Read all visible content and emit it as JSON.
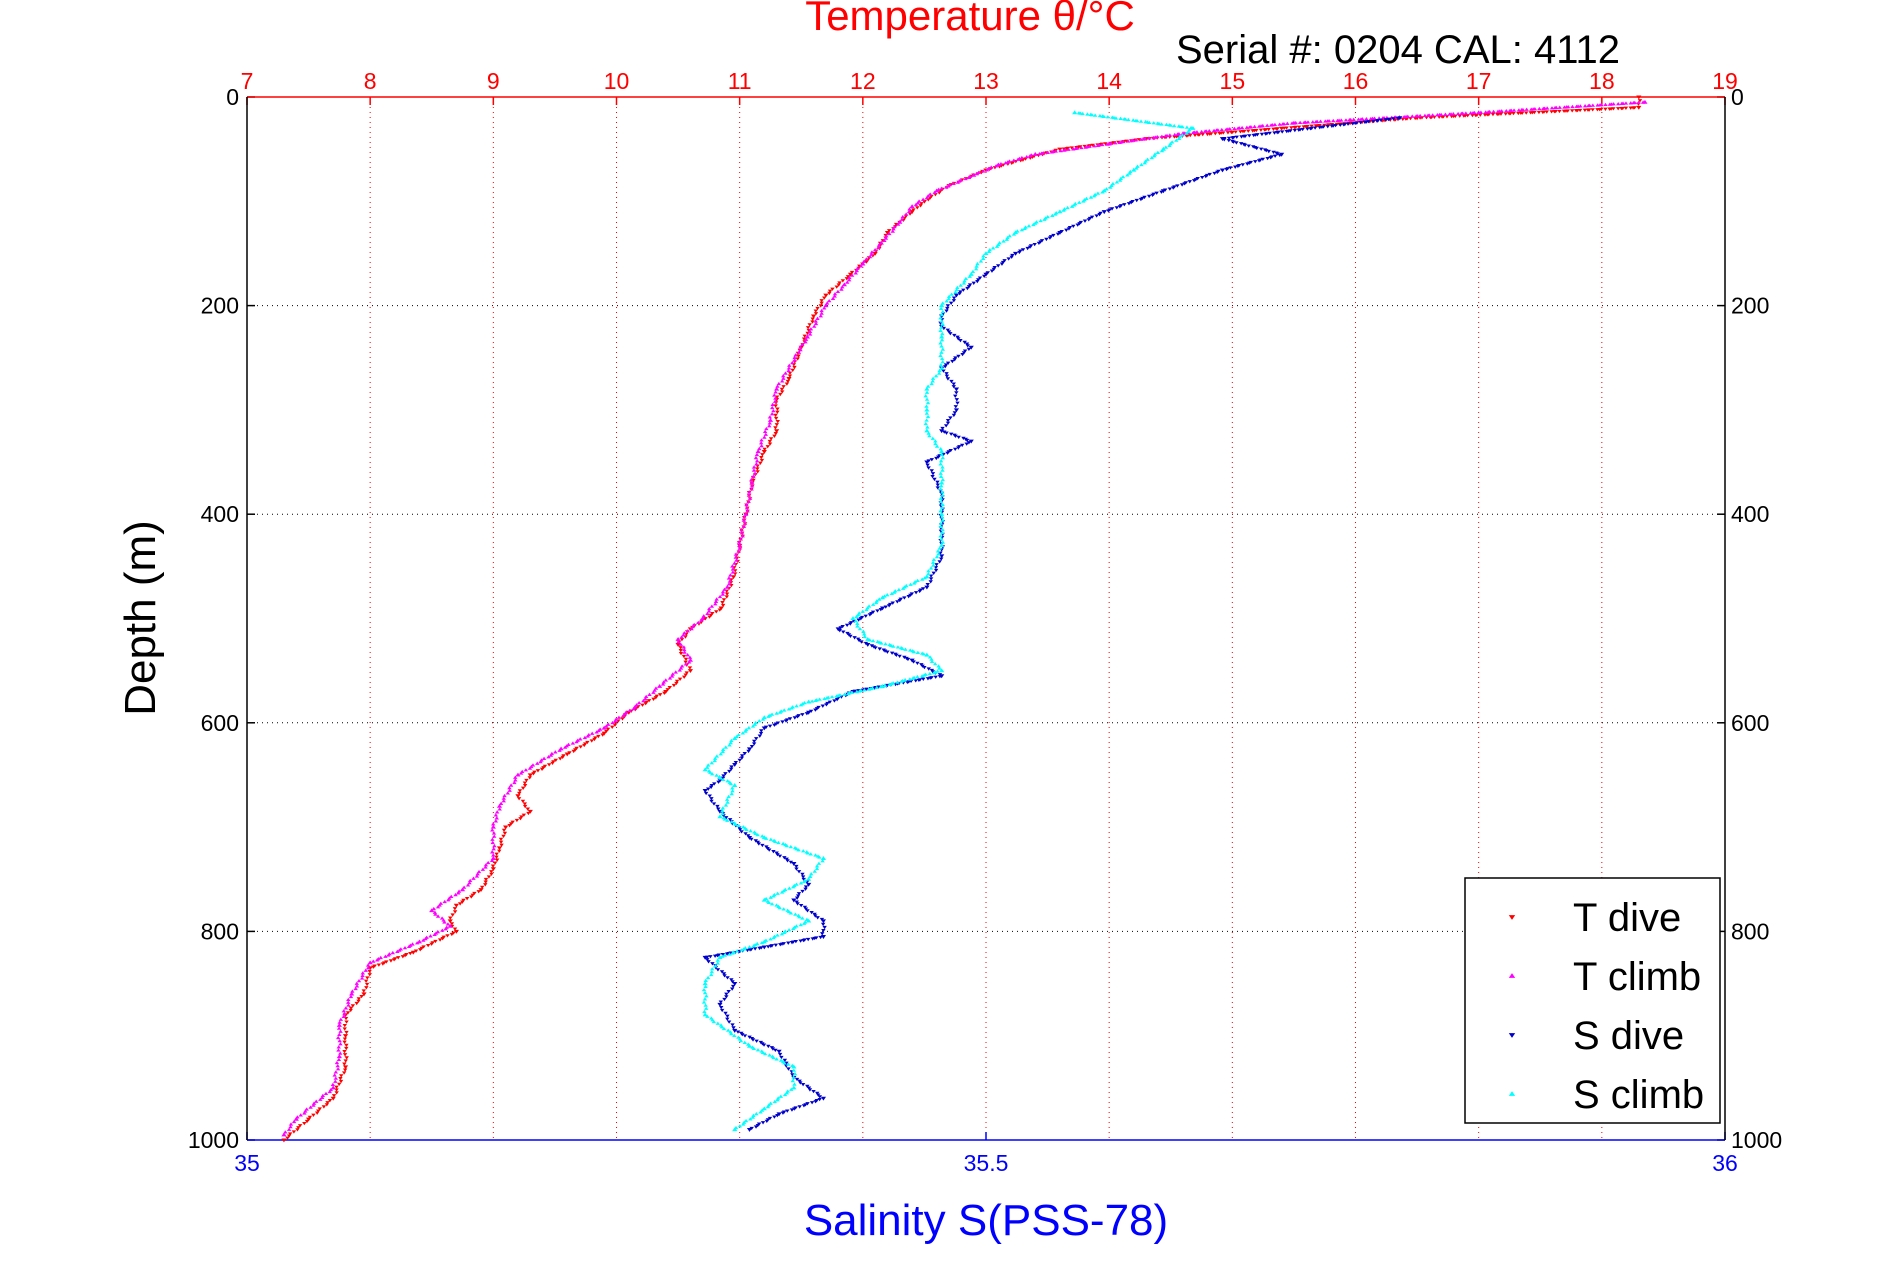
{
  "chart_data": {
    "type": "scatter",
    "title": "Temperature θ/°C",
    "subtitle": "Serial #: 0204  CAL: 4112",
    "xlabel": "Salinity S(PSS-78)",
    "ylabel": "Depth (m)",
    "x_top": {
      "label": "Temperature θ/°C",
      "lim": [
        7,
        19
      ],
      "ticks": [
        "7",
        "8",
        "9",
        "10",
        "11",
        "12",
        "13",
        "14",
        "15",
        "16",
        "17",
        "18",
        "19"
      ]
    },
    "x_bottom": {
      "label": "Salinity S(PSS-78)",
      "lim": [
        35,
        36
      ],
      "ticks": [
        "35",
        "35.5",
        "36"
      ]
    },
    "y": {
      "lim": [
        0,
        1000
      ],
      "reversed": true,
      "ticks": [
        "0",
        "200",
        "400",
        "600",
        "800",
        "1000"
      ]
    },
    "grid": true,
    "legend_position": "bottom-right",
    "colors": {
      "t_dive": "#ff0000",
      "t_climb": "#ff00ff",
      "s_dive": "#0000cc",
      "s_climb": "#00ffff",
      "temp_axis": "#ff0000",
      "sal_axis": "#0000ff"
    },
    "series": [
      {
        "name": "T dive",
        "axis": "temperature",
        "marker": "triangle-down",
        "points": [
          [
            18.3,
            0
          ],
          [
            18.3,
            10
          ],
          [
            16.5,
            20
          ],
          [
            15.4,
            30
          ],
          [
            14.3,
            40
          ],
          [
            13.6,
            50
          ],
          [
            13.3,
            60
          ],
          [
            13.0,
            70
          ],
          [
            12.7,
            85
          ],
          [
            12.5,
            100
          ],
          [
            12.4,
            110
          ],
          [
            12.2,
            130
          ],
          [
            12.1,
            150
          ],
          [
            11.9,
            170
          ],
          [
            11.7,
            190
          ],
          [
            11.6,
            210
          ],
          [
            11.5,
            240
          ],
          [
            11.4,
            270
          ],
          [
            11.3,
            290
          ],
          [
            11.3,
            320
          ],
          [
            11.2,
            340
          ],
          [
            11.1,
            370
          ],
          [
            11.05,
            400
          ],
          [
            11.0,
            430
          ],
          [
            10.95,
            460
          ],
          [
            10.85,
            490
          ],
          [
            10.6,
            510
          ],
          [
            10.5,
            525
          ],
          [
            10.6,
            550
          ],
          [
            10.4,
            570
          ],
          [
            10.1,
            590
          ],
          [
            9.9,
            610
          ],
          [
            9.6,
            630
          ],
          [
            9.3,
            650
          ],
          [
            9.2,
            670
          ],
          [
            9.3,
            685
          ],
          [
            9.1,
            700
          ],
          [
            9.05,
            720
          ],
          [
            9.0,
            740
          ],
          [
            8.9,
            760
          ],
          [
            8.7,
            775
          ],
          [
            8.65,
            790
          ],
          [
            8.7,
            800
          ],
          [
            8.35,
            820
          ],
          [
            8.0,
            835
          ],
          [
            7.95,
            860
          ],
          [
            7.8,
            880
          ],
          [
            7.8,
            900
          ],
          [
            7.8,
            930
          ],
          [
            7.7,
            960
          ],
          [
            7.5,
            980
          ],
          [
            7.3,
            1000
          ]
        ]
      },
      {
        "name": "T climb",
        "axis": "temperature",
        "marker": "triangle-up",
        "points": [
          [
            18.35,
            5
          ],
          [
            17.0,
            15
          ],
          [
            15.5,
            25
          ],
          [
            14.6,
            35
          ],
          [
            14.0,
            45
          ],
          [
            13.4,
            55
          ],
          [
            13.1,
            65
          ],
          [
            12.9,
            75
          ],
          [
            12.6,
            90
          ],
          [
            12.4,
            105
          ],
          [
            12.3,
            120
          ],
          [
            12.15,
            140
          ],
          [
            12.0,
            160
          ],
          [
            11.85,
            180
          ],
          [
            11.7,
            200
          ],
          [
            11.55,
            230
          ],
          [
            11.3,
            280
          ],
          [
            11.25,
            310
          ],
          [
            11.15,
            340
          ],
          [
            11.1,
            370
          ],
          [
            11.05,
            400
          ],
          [
            11.0,
            430
          ],
          [
            10.9,
            470
          ],
          [
            10.7,
            500
          ],
          [
            10.5,
            520
          ],
          [
            10.6,
            540
          ],
          [
            10.35,
            565
          ],
          [
            10.15,
            585
          ],
          [
            9.9,
            605
          ],
          [
            9.55,
            625
          ],
          [
            9.2,
            650
          ],
          [
            9.05,
            680
          ],
          [
            9.0,
            700
          ],
          [
            9.0,
            730
          ],
          [
            8.75,
            760
          ],
          [
            8.5,
            780
          ],
          [
            8.65,
            795
          ],
          [
            8.4,
            810
          ],
          [
            8.0,
            830
          ],
          [
            7.85,
            860
          ],
          [
            7.75,
            890
          ],
          [
            7.75,
            920
          ],
          [
            7.7,
            950
          ],
          [
            7.4,
            980
          ],
          [
            7.3,
            995
          ]
        ]
      },
      {
        "name": "S dive",
        "axis": "salinity",
        "marker": "triangle-down",
        "points": [
          [
            35.78,
            20
          ],
          [
            35.66,
            40
          ],
          [
            35.7,
            55
          ],
          [
            35.66,
            70
          ],
          [
            35.62,
            90
          ],
          [
            35.58,
            110
          ],
          [
            35.55,
            130
          ],
          [
            35.52,
            150
          ],
          [
            35.5,
            170
          ],
          [
            35.48,
            190
          ],
          [
            35.47,
            210
          ],
          [
            35.47,
            220
          ],
          [
            35.49,
            240
          ],
          [
            35.47,
            260
          ],
          [
            35.48,
            280
          ],
          [
            35.48,
            300
          ],
          [
            35.47,
            320
          ],
          [
            35.49,
            330
          ],
          [
            35.46,
            350
          ],
          [
            35.47,
            380
          ],
          [
            35.47,
            410
          ],
          [
            35.47,
            440
          ],
          [
            35.46,
            470
          ],
          [
            35.43,
            490
          ],
          [
            35.4,
            510
          ],
          [
            35.42,
            525
          ],
          [
            35.45,
            540
          ],
          [
            35.47,
            555
          ],
          [
            35.41,
            570
          ],
          [
            35.38,
            590
          ],
          [
            35.35,
            605
          ],
          [
            35.34,
            625
          ],
          [
            35.33,
            640
          ],
          [
            35.32,
            655
          ],
          [
            35.31,
            665
          ],
          [
            35.32,
            685
          ],
          [
            35.34,
            710
          ],
          [
            35.37,
            735
          ],
          [
            35.38,
            755
          ],
          [
            35.37,
            770
          ],
          [
            35.39,
            790
          ],
          [
            35.39,
            805
          ],
          [
            35.35,
            815
          ],
          [
            35.31,
            825
          ],
          [
            35.33,
            850
          ],
          [
            35.32,
            870
          ],
          [
            35.33,
            895
          ],
          [
            35.36,
            915
          ],
          [
            35.37,
            940
          ],
          [
            35.39,
            960
          ],
          [
            35.36,
            975
          ],
          [
            35.34,
            990
          ]
        ]
      },
      {
        "name": "S climb",
        "axis": "salinity",
        "marker": "triangle-up",
        "points": [
          [
            35.56,
            15
          ],
          [
            35.64,
            30
          ],
          [
            35.62,
            50
          ],
          [
            35.6,
            70
          ],
          [
            35.58,
            90
          ],
          [
            35.55,
            110
          ],
          [
            35.52,
            130
          ],
          [
            35.5,
            150
          ],
          [
            35.49,
            170
          ],
          [
            35.47,
            200
          ],
          [
            35.47,
            230
          ],
          [
            35.47,
            260
          ],
          [
            35.46,
            280
          ],
          [
            35.46,
            300
          ],
          [
            35.46,
            320
          ],
          [
            35.47,
            340
          ],
          [
            35.47,
            370
          ],
          [
            35.47,
            400
          ],
          [
            35.47,
            430
          ],
          [
            35.46,
            460
          ],
          [
            35.43,
            480
          ],
          [
            35.41,
            500
          ],
          [
            35.42,
            520
          ],
          [
            35.46,
            535
          ],
          [
            35.47,
            550
          ],
          [
            35.43,
            565
          ],
          [
            35.38,
            580
          ],
          [
            35.35,
            595
          ],
          [
            35.33,
            615
          ],
          [
            35.31,
            645
          ],
          [
            35.33,
            660
          ],
          [
            35.32,
            690
          ],
          [
            35.35,
            710
          ],
          [
            35.39,
            730
          ],
          [
            35.38,
            750
          ],
          [
            35.35,
            770
          ],
          [
            35.38,
            790
          ],
          [
            35.35,
            810
          ],
          [
            35.32,
            825
          ],
          [
            35.31,
            850
          ],
          [
            35.31,
            880
          ],
          [
            35.34,
            910
          ],
          [
            35.37,
            930
          ],
          [
            35.37,
            950
          ],
          [
            35.35,
            970
          ],
          [
            35.33,
            990
          ]
        ]
      }
    ]
  }
}
